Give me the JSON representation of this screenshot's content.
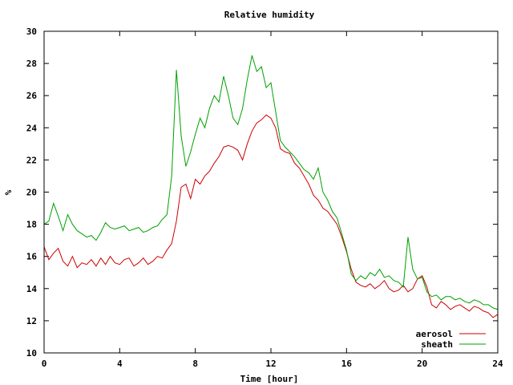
{
  "chart_data": {
    "type": "line",
    "title": "Relative humidity",
    "xlabel": "Time [hour]",
    "ylabel": "%",
    "xlim": [
      0,
      24
    ],
    "ylim": [
      10,
      30
    ],
    "xticks": [
      0,
      4,
      8,
      12,
      16,
      20,
      24
    ],
    "yticks": [
      10,
      12,
      14,
      16,
      18,
      20,
      22,
      24,
      26,
      28,
      30
    ],
    "grid": false,
    "legend_position": "bottom-right",
    "series": [
      {
        "name": "aerosol",
        "color": "#cc0000",
        "x": [
          0,
          0.25,
          0.5,
          0.75,
          1,
          1.25,
          1.5,
          1.75,
          2,
          2.25,
          2.5,
          2.75,
          3,
          3.25,
          3.5,
          3.75,
          4,
          4.25,
          4.5,
          4.75,
          5,
          5.25,
          5.5,
          5.75,
          6,
          6.25,
          6.5,
          6.75,
          7,
          7.25,
          7.5,
          7.75,
          8,
          8.25,
          8.5,
          8.75,
          9,
          9.25,
          9.5,
          9.75,
          10,
          10.25,
          10.5,
          10.75,
          11,
          11.25,
          11.5,
          11.75,
          12,
          12.25,
          12.5,
          12.75,
          13,
          13.25,
          13.5,
          13.75,
          14,
          14.25,
          14.5,
          14.75,
          15,
          15.25,
          15.5,
          15.75,
          16,
          16.25,
          16.5,
          16.75,
          17,
          17.25,
          17.5,
          17.75,
          18,
          18.25,
          18.5,
          18.75,
          19,
          19.25,
          19.5,
          19.75,
          20,
          20.25,
          20.5,
          20.75,
          21,
          21.25,
          21.5,
          21.75,
          22,
          22.25,
          22.5,
          22.75,
          23,
          23.25,
          23.5,
          23.75,
          24
        ],
        "values": [
          16.6,
          15.8,
          16.2,
          16.5,
          15.7,
          15.4,
          16.0,
          15.3,
          15.6,
          15.5,
          15.8,
          15.4,
          15.9,
          15.5,
          16.0,
          15.6,
          15.5,
          15.8,
          15.9,
          15.4,
          15.6,
          15.9,
          15.5,
          15.7,
          16.0,
          15.9,
          16.4,
          16.8,
          18.2,
          20.3,
          20.5,
          19.6,
          20.8,
          20.5,
          21.0,
          21.3,
          21.8,
          22.2,
          22.8,
          22.9,
          22.8,
          22.6,
          22.0,
          23.0,
          23.8,
          24.3,
          24.5,
          24.8,
          24.6,
          24.0,
          22.7,
          22.5,
          22.4,
          21.8,
          21.5,
          21.0,
          20.5,
          19.8,
          19.5,
          19.0,
          18.8,
          18.4,
          18.0,
          17.2,
          16.3,
          15.2,
          14.4,
          14.2,
          14.1,
          14.3,
          14.0,
          14.2,
          14.5,
          14.0,
          13.8,
          13.9,
          14.2,
          13.8,
          14.0,
          14.6,
          14.8,
          14.1,
          13.0,
          12.8,
          13.2,
          13.0,
          12.7,
          12.9,
          13.0,
          12.8,
          12.6,
          12.9,
          12.8,
          12.6,
          12.5,
          12.2,
          12.4
        ]
      },
      {
        "name": "sheath",
        "color": "#00a000",
        "x": [
          0,
          0.25,
          0.5,
          0.75,
          1,
          1.25,
          1.5,
          1.75,
          2,
          2.25,
          2.5,
          2.75,
          3,
          3.25,
          3.5,
          3.75,
          4,
          4.25,
          4.5,
          4.75,
          5,
          5.25,
          5.5,
          5.75,
          6,
          6.25,
          6.5,
          6.75,
          7,
          7.25,
          7.5,
          7.75,
          8,
          8.25,
          8.5,
          8.75,
          9,
          9.25,
          9.5,
          9.75,
          10,
          10.25,
          10.5,
          10.75,
          11,
          11.25,
          11.5,
          11.75,
          12,
          12.25,
          12.5,
          12.75,
          13,
          13.25,
          13.5,
          13.75,
          14,
          14.25,
          14.5,
          14.75,
          15,
          15.25,
          15.5,
          15.75,
          16,
          16.25,
          16.5,
          16.75,
          17,
          17.25,
          17.5,
          17.75,
          18,
          18.25,
          18.5,
          18.75,
          19,
          19.25,
          19.5,
          19.75,
          20,
          20.25,
          20.5,
          20.75,
          21,
          21.25,
          21.5,
          21.75,
          22,
          22.25,
          22.5,
          22.75,
          23,
          23.25,
          23.5,
          23.75,
          24
        ],
        "values": [
          18.0,
          18.2,
          19.3,
          18.5,
          17.6,
          18.6,
          18.0,
          17.6,
          17.4,
          17.2,
          17.3,
          17.0,
          17.5,
          18.1,
          17.8,
          17.7,
          17.8,
          17.9,
          17.6,
          17.7,
          17.8,
          17.5,
          17.6,
          17.8,
          17.9,
          18.3,
          18.6,
          21.0,
          27.6,
          23.5,
          21.6,
          22.5,
          23.6,
          24.6,
          24.0,
          25.2,
          26.0,
          25.6,
          27.2,
          26.0,
          24.6,
          24.2,
          25.2,
          27.0,
          28.5,
          27.5,
          27.8,
          26.5,
          26.8,
          25.0,
          23.2,
          22.8,
          22.5,
          22.2,
          21.8,
          21.4,
          21.2,
          20.8,
          21.5,
          20.0,
          19.5,
          18.8,
          18.4,
          17.4,
          16.4,
          14.9,
          14.5,
          14.8,
          14.6,
          15.0,
          14.8,
          15.2,
          14.7,
          14.8,
          14.5,
          14.4,
          14.1,
          17.2,
          15.2,
          14.6,
          14.7,
          13.8,
          13.5,
          13.6,
          13.3,
          13.5,
          13.5,
          13.3,
          13.4,
          13.2,
          13.1,
          13.3,
          13.2,
          13.0,
          13.0,
          12.8,
          12.7
        ]
      }
    ]
  }
}
